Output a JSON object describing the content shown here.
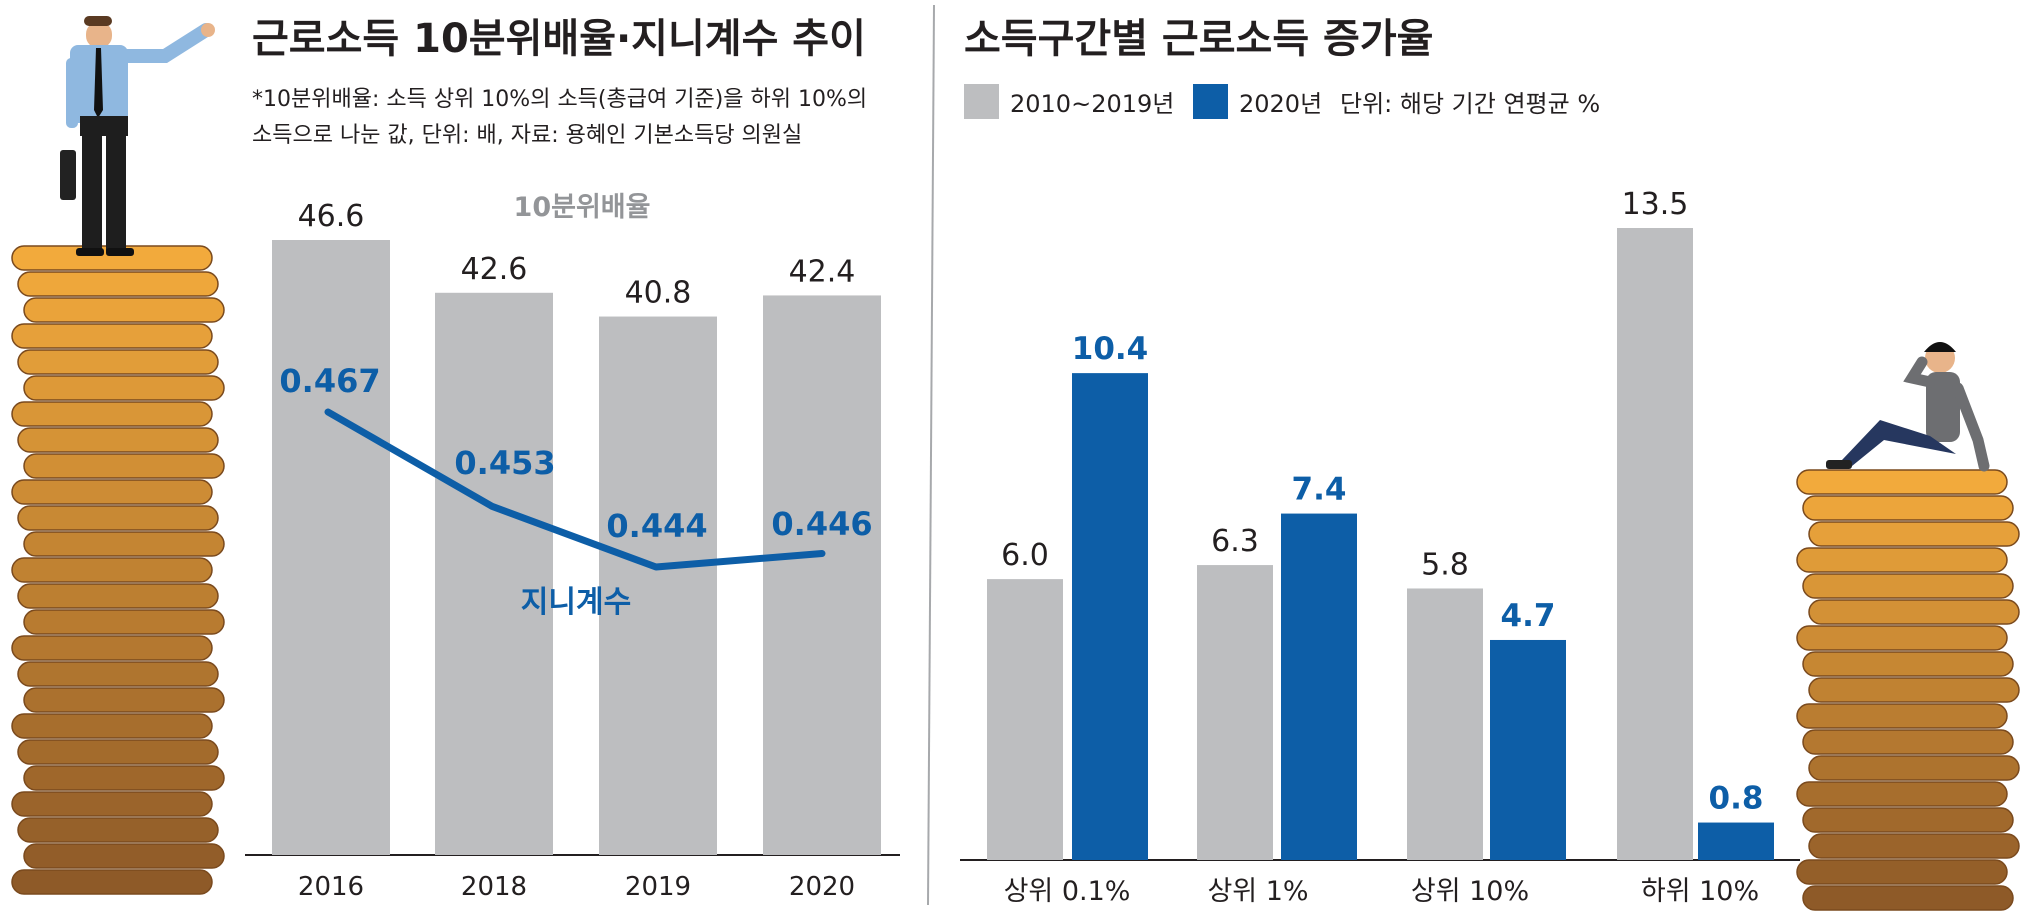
{
  "colors": {
    "gray": "#bdbec0",
    "blue": "#0d5ea7",
    "text": "#231f20",
    "divider": "#a7a9ac",
    "coin": "#f2a93b",
    "coinDark": "#8a5a2b"
  },
  "chart_data": [
    {
      "type": "bar+line",
      "title": "근로소득 10분위배율·지니계수 추이",
      "note_line1": "*10분위배율: 소득 상위 10%의 소득(총급여 기준)을 하위 10%의",
      "note_line2": "소득으로 나눈 값, 단위: 배, 자료: 용혜인 기본소득당 의원실",
      "categories": [
        "2016",
        "2018",
        "2019",
        "2020"
      ],
      "bar_series": {
        "name": "10분위배율",
        "values": [
          46.6,
          42.6,
          40.8,
          42.4
        ],
        "labels": [
          "46.6",
          "42.6",
          "40.8",
          "42.4"
        ]
      },
      "line_series": {
        "name": "지니계수",
        "values": [
          0.467,
          0.453,
          0.444,
          0.446
        ],
        "labels": [
          "0.467",
          "0.453",
          "0.444",
          "0.446"
        ]
      },
      "ylim_bar": [
        0,
        50
      ]
    },
    {
      "type": "bar",
      "title": "소득구간별 근로소득 증가율",
      "unit": "단위: 해당 기간 연평균 %",
      "categories": [
        "상위 0.1%",
        "상위 1%",
        "상위 10%",
        "하위 10%"
      ],
      "series": [
        {
          "name": "2010~2019년",
          "values": [
            6.0,
            6.3,
            5.8,
            13.5
          ],
          "labels": [
            "6.0",
            "6.3",
            "5.8",
            "13.5"
          ]
        },
        {
          "name": "2020년",
          "values": [
            10.4,
            7.4,
            4.7,
            0.8
          ],
          "labels": [
            "10.4",
            "7.4",
            "4.7",
            "0.8"
          ]
        }
      ],
      "ylim": [
        0,
        15
      ]
    }
  ]
}
